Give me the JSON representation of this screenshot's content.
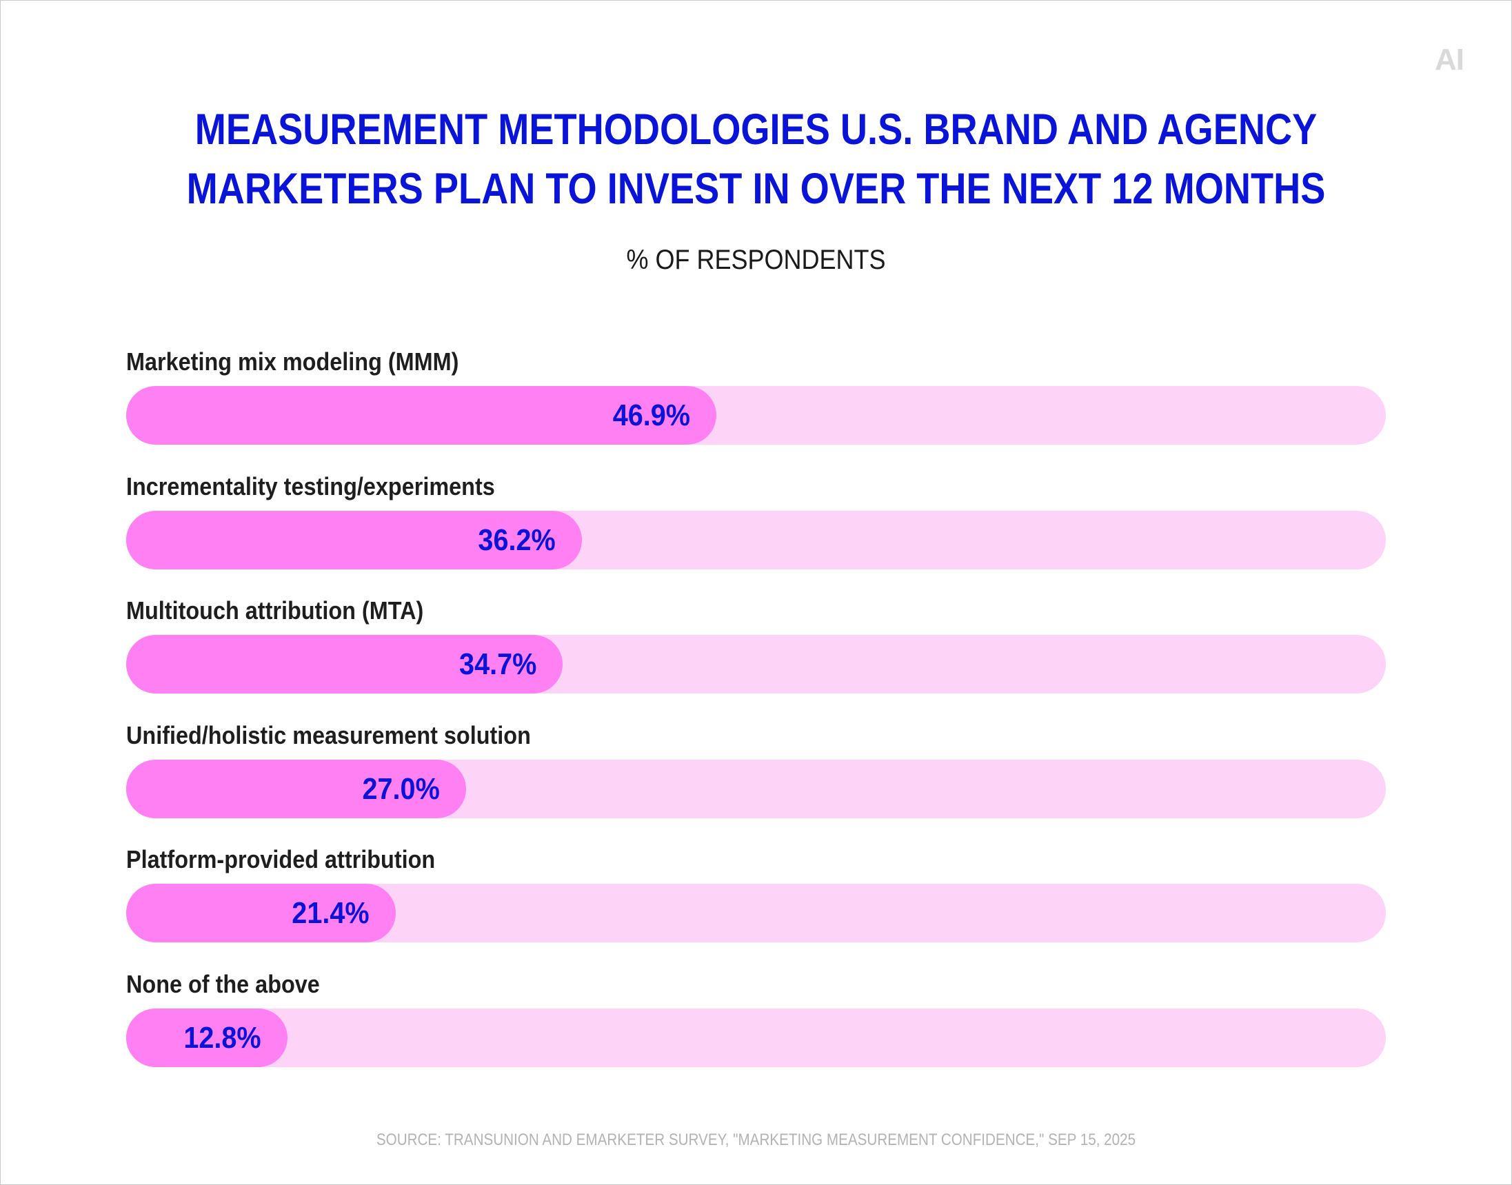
{
  "brand": {
    "logo_text": "AI"
  },
  "chart_data": {
    "type": "bar",
    "orientation": "horizontal",
    "title_lines": [
      "MEASUREMENT METHODOLOGIES U.S. BRAND AND AGENCY",
      "MARKETERS PLAN TO INVEST IN OVER THE NEXT 12 MONTHS"
    ],
    "subtitle": "% OF RESPONDENTS",
    "categories": [
      "Marketing mix modeling (MMM)",
      "Incrementality testing/experiments",
      "Multitouch attribution (MTA)",
      "Unified/holistic measurement solution",
      "Platform-provided attribution",
      "None of the above"
    ],
    "values": [
      46.9,
      36.2,
      34.7,
      27.0,
      21.4,
      12.8
    ],
    "value_labels": [
      "46.9%",
      "36.2%",
      "34.7%",
      "27.0%",
      "21.4%",
      "12.8%"
    ],
    "xlim": [
      0,
      100
    ],
    "grid": false,
    "legend": "none",
    "colors": {
      "title": "#0a14d9",
      "bar": "#ff80f2",
      "track": "#fdd4f8",
      "value_label": "#0a14d9"
    },
    "source": "SOURCE: TRANSUNION AND EMARKETER SURVEY, \"MARKETING MEASUREMENT CONFIDENCE,\" SEP 15, 2025"
  }
}
